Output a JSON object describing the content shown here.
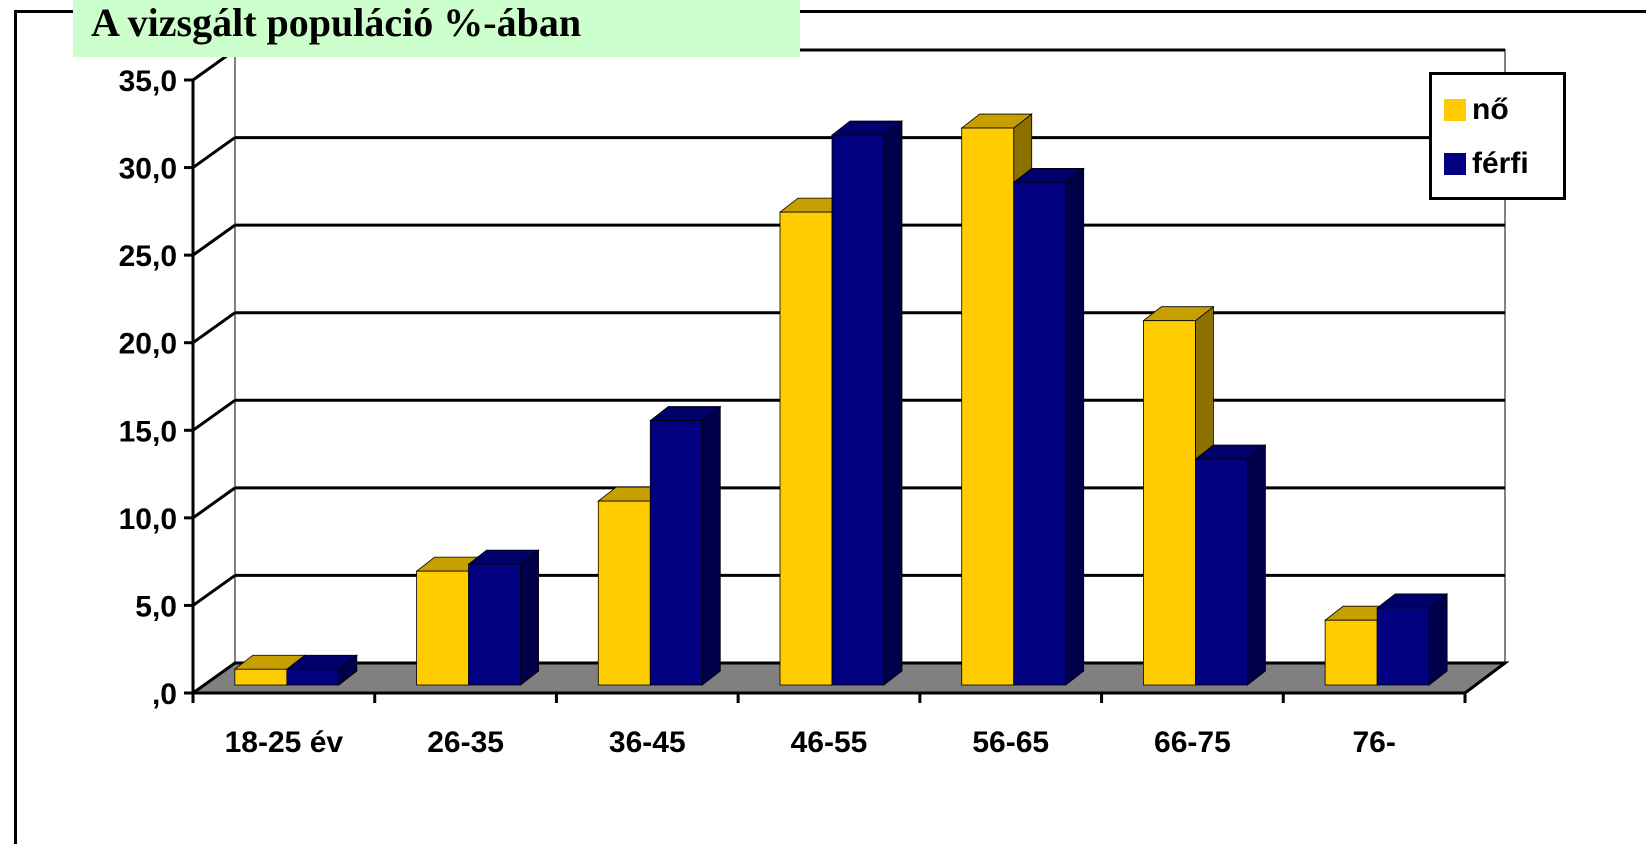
{
  "title": "A vizsgált populáció %-ában",
  "colors": {
    "nő": {
      "front": "#ffcc00",
      "top": "#c79f00",
      "side": "#8c7000"
    },
    "férfi": {
      "front": "#000080",
      "top": "#00006a",
      "side": "#00004a"
    },
    "floor": "#808080",
    "walls": "#ffffff"
  },
  "legend": {
    "placement": "top-right",
    "items": [
      {
        "label": "nő",
        "color": "#ffcc00"
      },
      {
        "label": "férfi",
        "color": "#000080"
      }
    ]
  },
  "chart_data": {
    "type": "bar",
    "style": "3d-clustered-column",
    "title": "A vizsgált populáció %-ában",
    "categories": [
      "18-25 év",
      "26-35",
      "36-45",
      "46-55",
      "56-65",
      "66-75",
      "76-"
    ],
    "series": [
      {
        "name": "nő",
        "values": [
          0.9,
          6.5,
          10.5,
          27.0,
          31.8,
          20.8,
          3.7
        ]
      },
      {
        "name": "férfi",
        "values": [
          0.9,
          6.9,
          15.1,
          31.4,
          28.7,
          12.9,
          4.4
        ]
      }
    ],
    "yticks": [
      ",0",
      "5,0",
      "10,0",
      "15,0",
      "20,0",
      "25,0",
      "30,0",
      "35,0"
    ],
    "ylim": [
      0,
      35
    ],
    "grid": true
  }
}
